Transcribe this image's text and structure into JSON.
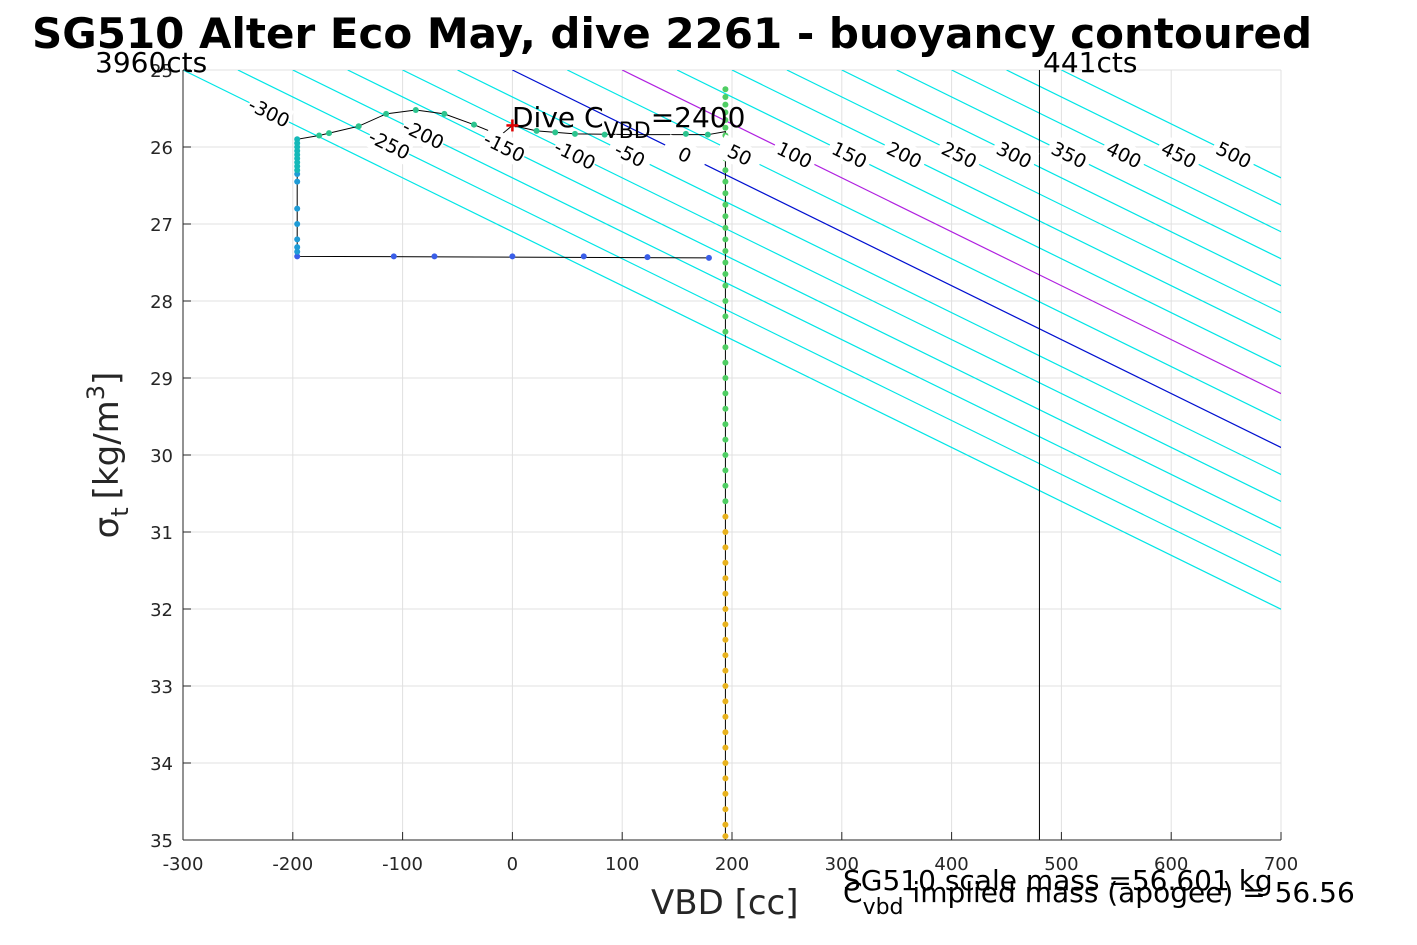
{
  "title": "SG510 Alter Eco May, dive 2261 - buoyancy contoured",
  "axes": {
    "xlabel": "VBD [cc]",
    "ylabel_sigma": "σ",
    "ylabel_sub": "t",
    "ylabel_unit": "[kg/m",
    "ylabel_sup": "3",
    "ylabel_close": "]"
  },
  "annotations": {
    "left_counts": "3960cts",
    "right_counts": "441cts",
    "dive_label_prefix": "Dive C",
    "dive_label_sub": "VBD",
    "dive_label_suffix": "=2400",
    "scale_mass": "SG510 scale mass =56.601 kg",
    "implied_prefix": "C",
    "implied_sub": "vbd",
    "implied_text": " implied mass (apogee) = 56.56"
  },
  "colors": {
    "contour": "#00e6e6",
    "contour_100": "#b020e0",
    "contour_zero": "#0010d0",
    "grid": "#e0e0e0",
    "trace": "#000000",
    "dive_marker": "#e00000",
    "limit_line": "#000000"
  },
  "chart_data": {
    "type": "scatter",
    "title": "SG510 Alter Eco May, dive 2261 - buoyancy contoured",
    "xlabel": "VBD [cc]",
    "ylabel": "σt [kg/m3]",
    "xlim": [
      -300,
      700
    ],
    "ylim": [
      25,
      35
    ],
    "y_reversed": true,
    "grid": true,
    "xticks": [
      -300,
      -200,
      -100,
      0,
      100,
      200,
      300,
      400,
      500,
      600,
      700
    ],
    "yticks": [
      25,
      26,
      27,
      28,
      29,
      30,
      31,
      32,
      33,
      34,
      35
    ],
    "xtick_labels": [
      "-300",
      "-200",
      "-100",
      "0",
      "100",
      "200",
      "300",
      "400",
      "500",
      "600",
      "700"
    ],
    "ytick_labels": [
      "25",
      "26",
      "27",
      "28",
      "29",
      "30",
      "31",
      "32",
      "33",
      "34",
      "35"
    ],
    "contour_slope_cc_per_sigma": 142.8,
    "contours": [
      -300,
      -250,
      -200,
      -150,
      -100,
      -50,
      0,
      50,
      100,
      150,
      200,
      250,
      300,
      350,
      400,
      450,
      500
    ],
    "contour_labels_upper": [
      {
        "value": -300,
        "text": "-300"
      },
      {
        "value": -250,
        "text": "-250"
      },
      {
        "value": -200,
        "text": "-200"
      },
      {
        "value": -150,
        "text": "-150"
      },
      {
        "value": -100,
        "text": "-100"
      },
      {
        "value": -50,
        "text": "-50"
      },
      {
        "value": 0,
        "text": "0"
      },
      {
        "value": 50,
        "text": "50"
      },
      {
        "value": 100,
        "text": "100"
      },
      {
        "value": 150,
        "text": "150"
      },
      {
        "value": 200,
        "text": "200"
      },
      {
        "value": 250,
        "text": "250"
      },
      {
        "value": 300,
        "text": "300"
      },
      {
        "value": 350,
        "text": "350"
      },
      {
        "value": 400,
        "text": "400"
      },
      {
        "value": 450,
        "text": "450"
      },
      {
        "value": 500,
        "text": "500"
      }
    ],
    "contour_labels_lower": [
      {
        "value": 0,
        "text": "0"
      },
      {
        "value": 50,
        "text": "50"
      },
      {
        "value": 100,
        "text": "100"
      },
      {
        "value": 150,
        "text": "150"
      },
      {
        "value": 200,
        "text": "200"
      },
      {
        "value": 250,
        "text": "250"
      },
      {
        "value": 300,
        "text": "300"
      },
      {
        "value": 350,
        "text": "350"
      },
      {
        "value": 400,
        "text": "400"
      },
      {
        "value": 450,
        "text": "450"
      },
      {
        "value": 500,
        "text": "500"
      }
    ],
    "limit_lines_vbd": [
      -300,
      480
    ],
    "dive_marker": {
      "x": 0,
      "y": 25.72
    },
    "series": [
      {
        "color": "#3a5ee8",
        "points": [
          [
            -196,
            27.42
          ],
          [
            -108,
            27.42
          ],
          [
            -71,
            27.42
          ],
          [
            0,
            27.42
          ],
          [
            65,
            27.42
          ],
          [
            123,
            27.43
          ],
          [
            179,
            27.44
          ]
        ]
      },
      {
        "color": "#1e9bd6",
        "points": [
          [
            -196,
            27.36
          ],
          [
            -196,
            27.3
          ],
          [
            -196,
            27.2
          ],
          [
            -196,
            27.0
          ],
          [
            -196,
            26.8
          ],
          [
            -196,
            26.45
          ],
          [
            -196,
            26.35
          ]
        ]
      },
      {
        "color": "#14b8b8",
        "points": [
          [
            -196,
            26.3
          ],
          [
            -196,
            26.25
          ],
          [
            -196,
            26.2
          ],
          [
            -196,
            26.15
          ],
          [
            -196,
            26.1
          ],
          [
            -196,
            26.05
          ],
          [
            -196,
            26.0
          ],
          [
            -196,
            25.95
          ],
          [
            -196,
            25.9
          ]
        ]
      },
      {
        "color": "#2cc48e",
        "points": [
          [
            -176,
            25.85
          ],
          [
            -167,
            25.82
          ],
          [
            -140,
            25.73
          ],
          [
            -115,
            25.57
          ],
          [
            -88,
            25.52
          ],
          [
            -62,
            25.57
          ],
          [
            -35,
            25.71
          ],
          [
            -11,
            25.85
          ],
          [
            22,
            25.79
          ],
          [
            39,
            25.81
          ],
          [
            57,
            25.83
          ],
          [
            84,
            25.84
          ],
          [
            158,
            25.83
          ],
          [
            178,
            25.84
          ]
        ]
      },
      {
        "color": "#4fce63",
        "points": [
          [
            194,
            25.25
          ],
          [
            194,
            25.35
          ],
          [
            194,
            25.45
          ],
          [
            194,
            25.55
          ],
          [
            194,
            25.65
          ],
          [
            194,
            25.75
          ],
          [
            194,
            25.85
          ],
          [
            194,
            25.95
          ],
          [
            194,
            26.05
          ],
          [
            194,
            26.15
          ],
          [
            194,
            26.3
          ],
          [
            194,
            26.45
          ],
          [
            194,
            26.6
          ],
          [
            194,
            26.75
          ],
          [
            194,
            26.9
          ],
          [
            194,
            27.05
          ],
          [
            194,
            27.2
          ],
          [
            194,
            27.35
          ],
          [
            194,
            27.5
          ],
          [
            194,
            27.65
          ],
          [
            194,
            27.8
          ],
          [
            194,
            28.0
          ],
          [
            194,
            28.2
          ],
          [
            194,
            28.4
          ],
          [
            194,
            28.6
          ],
          [
            194,
            28.8
          ],
          [
            194,
            29.0
          ],
          [
            194,
            29.2
          ],
          [
            194,
            29.4
          ],
          [
            194,
            29.6
          ],
          [
            194,
            29.8
          ],
          [
            194,
            30.0
          ],
          [
            194,
            30.2
          ],
          [
            194,
            30.4
          ],
          [
            194,
            30.6
          ]
        ]
      },
      {
        "color": "#e8b21e",
        "points": [
          [
            194,
            30.8
          ],
          [
            194,
            31.0
          ],
          [
            194,
            31.2
          ],
          [
            194,
            31.4
          ],
          [
            194,
            31.6
          ],
          [
            194,
            31.8
          ],
          [
            194,
            32.0
          ],
          [
            194,
            32.2
          ],
          [
            194,
            32.4
          ],
          [
            194,
            32.6
          ],
          [
            194,
            32.8
          ],
          [
            194,
            33.0
          ],
          [
            194,
            33.2
          ],
          [
            194,
            33.4
          ],
          [
            194,
            33.6
          ],
          [
            194,
            33.8
          ],
          [
            194,
            34.0
          ],
          [
            194,
            34.2
          ],
          [
            194,
            34.4
          ],
          [
            194,
            34.6
          ],
          [
            194,
            34.8
          ],
          [
            194,
            34.95
          ]
        ]
      }
    ],
    "trace_line": [
      [
        179,
        27.44
      ],
      [
        -196,
        27.42
      ],
      [
        -196,
        25.9
      ],
      [
        -176,
        25.85
      ],
      [
        -140,
        25.73
      ],
      [
        -115,
        25.57
      ],
      [
        -88,
        25.52
      ],
      [
        -62,
        25.57
      ],
      [
        -35,
        25.71
      ],
      [
        -11,
        25.85
      ],
      [
        0,
        25.72
      ],
      [
        22,
        25.79
      ],
      [
        57,
        25.83
      ],
      [
        120,
        25.84
      ],
      [
        178,
        25.84
      ],
      [
        194,
        25.8
      ],
      [
        194,
        35.0
      ]
    ]
  }
}
